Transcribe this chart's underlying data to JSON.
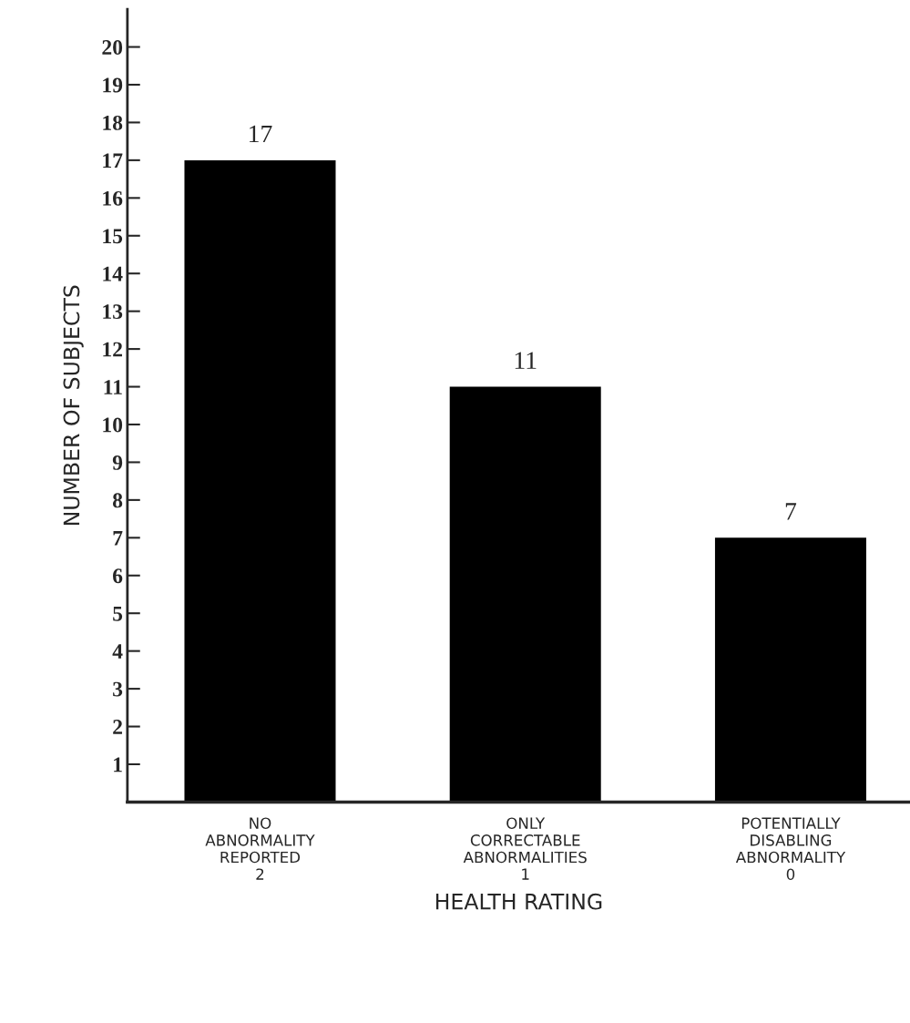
{
  "chart_data": {
    "type": "bar",
    "categories": [
      "NO\nABNORMALITY\nREPORTED\n2",
      "ONLY\nCORRECTABLE\nABNORMALITIES\n1",
      "POTENTIALLY\nDISABLING\nABNORMALITY\n0"
    ],
    "values": [
      17,
      11,
      7
    ],
    "color": "#000000",
    "xlabel": "HEALTH RATING",
    "ylabel": "NUMBER OF SUBJECTS",
    "ylim": [
      0,
      21
    ],
    "yticks": [
      1,
      2,
      3,
      4,
      5,
      6,
      7,
      8,
      9,
      10,
      11,
      12,
      13,
      14,
      15,
      16,
      17,
      18,
      19,
      20
    ],
    "data_labels": true,
    "grid": false,
    "legend": false
  }
}
